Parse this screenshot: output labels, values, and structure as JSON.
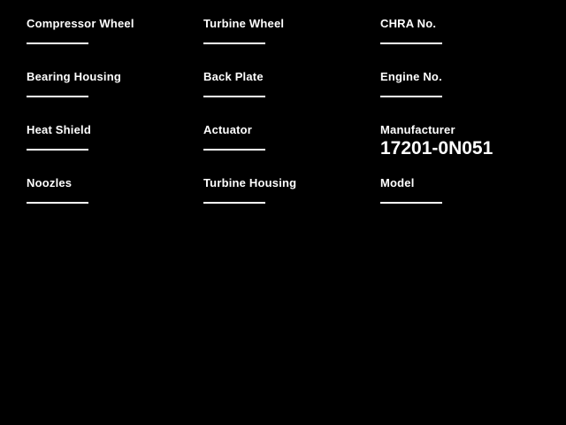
{
  "page": {
    "background_color": "#000000",
    "text_color": "#ffffff"
  },
  "form": {
    "columns": [
      {
        "fields": [
          {
            "label": "Compressor Wheel",
            "value": ""
          },
          {
            "label": "Bearing Housing",
            "value": ""
          },
          {
            "label": "Heat Shield",
            "value": ""
          },
          {
            "label": "Noozles",
            "value": ""
          }
        ]
      },
      {
        "fields": [
          {
            "label": "Turbine Wheel",
            "value": ""
          },
          {
            "label": "Back Plate",
            "value": ""
          },
          {
            "label": "Actuator",
            "value": ""
          },
          {
            "label": "Turbine Housing",
            "value": ""
          }
        ]
      },
      {
        "fields": [
          {
            "label": "CHRA No.",
            "value": ""
          },
          {
            "label": "Engine No.",
            "value": ""
          },
          {
            "label": "Manufacturer",
            "value": "17201-0N051"
          },
          {
            "label": "Model",
            "value": ""
          }
        ]
      }
    ]
  }
}
